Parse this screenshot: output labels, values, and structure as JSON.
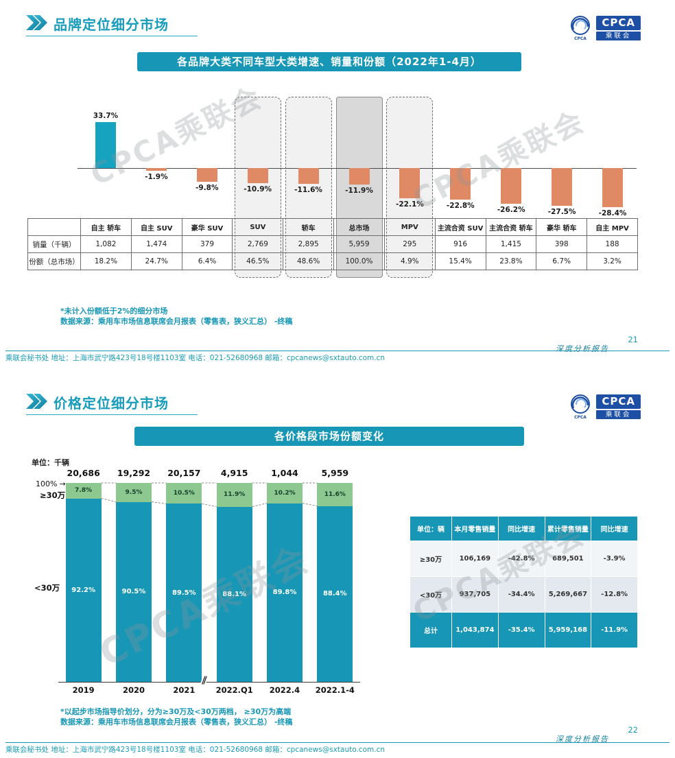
{
  "accents": {
    "teal": "#1797B5",
    "teal_bar": "#16A3C0",
    "orange": "#DF8A64",
    "green": "#8DC891",
    "logo_blue": "#1D4FA5"
  },
  "watermark": "CPCA乘联会",
  "logo": {
    "cpca": "CPCA",
    "cn": "乘联会",
    "mark_sub": "CPCA"
  },
  "footer": "乘联会秘书处  地址：上海市武宁路423号18号楼1103室 电话：021-52680968  邮箱：cpcanews@sxtauto.com.cn",
  "report_label": "深度分析报告",
  "chart_data": [
    {
      "type": "bar",
      "title": "各品牌大类不同车型大类增速、销量和份额（2022年1-4月）",
      "unit": "%",
      "categories": [
        "自主 轿车",
        "自主 SUV",
        "豪华 SUV",
        "SUV",
        "轿车",
        "总市场",
        "MPV",
        "主流合资 SUV",
        "主流合资 轿车",
        "豪华 轿车",
        "自主 MPV"
      ],
      "values": [
        33.7,
        -1.9,
        -9.8,
        -10.9,
        -11.6,
        -11.9,
        -22.1,
        -22.8,
        -26.2,
        -27.5,
        -28.4
      ],
      "ylim": [
        -30,
        36
      ],
      "highlight_dashed": [
        3,
        4,
        6
      ],
      "highlight_solid": [
        5
      ]
    },
    {
      "type": "stacked-bar",
      "title": "各价格段市场份额变化",
      "unit": "千辆",
      "categories": [
        "2019",
        "2020",
        "2021",
        "2022.Q1",
        "2022.4",
        "2022.1-4"
      ],
      "totals": [
        "20,686",
        "19,292",
        "20,157",
        "4,915",
        "1,044",
        "5,959"
      ],
      "series": [
        {
          "name": "≥30万",
          "values": [
            7.8,
            9.5,
            10.5,
            11.9,
            10.2,
            11.6
          ]
        },
        {
          "name": "<30万",
          "values": [
            92.2,
            90.5,
            89.5,
            88.1,
            89.8,
            88.4
          ]
        }
      ],
      "ylim": [
        0,
        100
      ],
      "legend_position": "left"
    }
  ],
  "slide1": {
    "page": "21",
    "title": "品牌定位细分市场",
    "banner": "各品牌大类不同车型大类增速、销量和份额（2022年1-4月）",
    "table": {
      "corner": "",
      "row1_label": "销量（千辆）",
      "row2_label": "份额（总市场）",
      "row1": [
        "1,082",
        "1,474",
        "379",
        "2,769",
        "2,895",
        "5,959",
        "295",
        "916",
        "1,415",
        "398",
        "188"
      ],
      "row2": [
        "18.2%",
        "24.7%",
        "6.4%",
        "46.5%",
        "48.6%",
        "100.0%",
        "4.9%",
        "15.4%",
        "23.8%",
        "6.7%",
        "3.2%"
      ]
    },
    "footnotes": [
      "*未计入份额低于2%的细分市场",
      "数据来源：乘用车市场信息联席会月报表（零售表，狭义汇总） -终稿"
    ]
  },
  "slide2": {
    "page": "22",
    "title": "价格定位细分市场",
    "banner": "各价格段市场份额变化",
    "unit_label": "单位：千辆",
    "chart_labels": {
      "pct100": "100%",
      "arrow": "→",
      "high": "≥30万",
      "low": "<30万",
      "break_mark": "∥"
    },
    "table": {
      "headers": [
        "单位：辆",
        "本月零售销量",
        "同比增速",
        "累计零售销量",
        "同比增速"
      ],
      "rows": [
        {
          "label": "≥30万",
          "cells": [
            "106,169",
            "-42.8%",
            "689,501",
            "-3.9%"
          ],
          "highlight": false
        },
        {
          "label": "<30万",
          "cells": [
            "937,705",
            "-34.4%",
            "5,269,667",
            "-12.8%"
          ],
          "highlight": false
        },
        {
          "label": "总计",
          "cells": [
            "1,043,874",
            "-35.4%",
            "5,959,168",
            "-11.9%"
          ],
          "highlight": true
        }
      ]
    },
    "footnotes": [
      "*以起步市场指导价划分，分为≥30万及<30万两档， ≥30万为高端",
      "数据来源：乘用车市场信息联席会月报表（零售表，狭义汇总） -终稿"
    ]
  }
}
